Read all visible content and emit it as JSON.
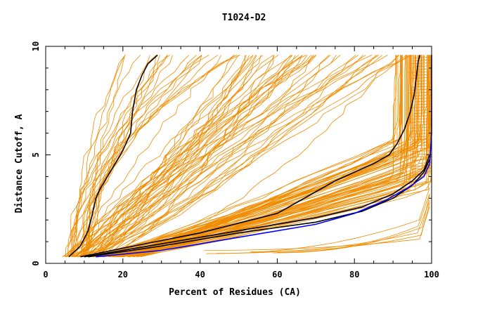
{
  "chart_data": {
    "type": "line",
    "title": "T1024-D2",
    "xlabel": "Percent of Residues (CA)",
    "ylabel": "Distance Cutoff, A",
    "xlim": [
      0,
      100
    ],
    "ylim": [
      0,
      10
    ],
    "xticks": [
      "0",
      "20",
      "40",
      "60",
      "80",
      "100"
    ],
    "yticks": [
      "0",
      "5",
      "10"
    ],
    "grid": false,
    "legend": "none",
    "colors": {
      "models": "#f08c00",
      "highlight": "#000000",
      "reference": "#0000ff"
    },
    "series": [
      {
        "role": "model-group",
        "color": "#f08c00",
        "summary": "approx. 150 orange model curves spanning from steep near-native curves to slow-rising poor models, plus several flat low-distance curves near 0.5-2 A",
        "points": [
          [
            5,
            0.3
          ],
          [
            10,
            0.8
          ],
          [
            20,
            1.5
          ],
          [
            40,
            2.4
          ],
          [
            60,
            3.2
          ],
          [
            80,
            4.3
          ],
          [
            95,
            6.5
          ],
          [
            98,
            9.6
          ]
        ]
      },
      {
        "role": "highlight",
        "color": "#000000",
        "points": [
          [
            6,
            0.3
          ],
          [
            9,
            0.8
          ],
          [
            11,
            1.5
          ],
          [
            12,
            2.2
          ],
          [
            13,
            3.0
          ],
          [
            14,
            3.4
          ],
          [
            16,
            4.0
          ],
          [
            18,
            4.6
          ],
          [
            20,
            5.2
          ],
          [
            22,
            6.0
          ],
          [
            22.5,
            7.0
          ],
          [
            23.5,
            8.0
          ],
          [
            25,
            8.7
          ],
          [
            26.5,
            9.2
          ],
          [
            29,
            9.6
          ]
        ]
      },
      {
        "role": "highlight",
        "color": "#000000",
        "points": [
          [
            9,
            0.3
          ],
          [
            20,
            0.7
          ],
          [
            40,
            1.4
          ],
          [
            60,
            2.3
          ],
          [
            65,
            2.8
          ],
          [
            70,
            3.3
          ],
          [
            75,
            3.8
          ],
          [
            80,
            4.2
          ],
          [
            85,
            4.6
          ],
          [
            89,
            5.0
          ],
          [
            91,
            5.5
          ],
          [
            93,
            6.2
          ],
          [
            94.5,
            7.0
          ],
          [
            95.5,
            7.8
          ],
          [
            96,
            8.5
          ],
          [
            96.5,
            9.3
          ],
          [
            97,
            9.6
          ]
        ]
      },
      {
        "role": "highlight",
        "color": "#000000",
        "points": [
          [
            10,
            0.3
          ],
          [
            30,
            0.9
          ],
          [
            50,
            1.5
          ],
          [
            70,
            2.1
          ],
          [
            82,
            2.6
          ],
          [
            90,
            3.2
          ],
          [
            95,
            3.8
          ],
          [
            98,
            4.3
          ],
          [
            99.5,
            5.0
          ]
        ]
      },
      {
        "role": "highlight",
        "color": "#000000",
        "points": [
          [
            11,
            0.3
          ],
          [
            30,
            0.8
          ],
          [
            50,
            1.4
          ],
          [
            70,
            1.9
          ],
          [
            82,
            2.4
          ],
          [
            90,
            3.0
          ],
          [
            95,
            3.6
          ],
          [
            98,
            4.2
          ],
          [
            99.5,
            4.8
          ]
        ]
      },
      {
        "role": "reference",
        "color": "#0000ff",
        "points": [
          [
            13,
            0.3
          ],
          [
            30,
            0.6
          ],
          [
            50,
            1.2
          ],
          [
            70,
            1.8
          ],
          [
            80,
            2.3
          ],
          [
            88,
            2.9
          ],
          [
            94,
            3.5
          ],
          [
            98,
            4.0
          ],
          [
            99.5,
            4.6
          ],
          [
            100,
            6.0
          ],
          [
            100,
            9.6
          ]
        ]
      }
    ]
  }
}
